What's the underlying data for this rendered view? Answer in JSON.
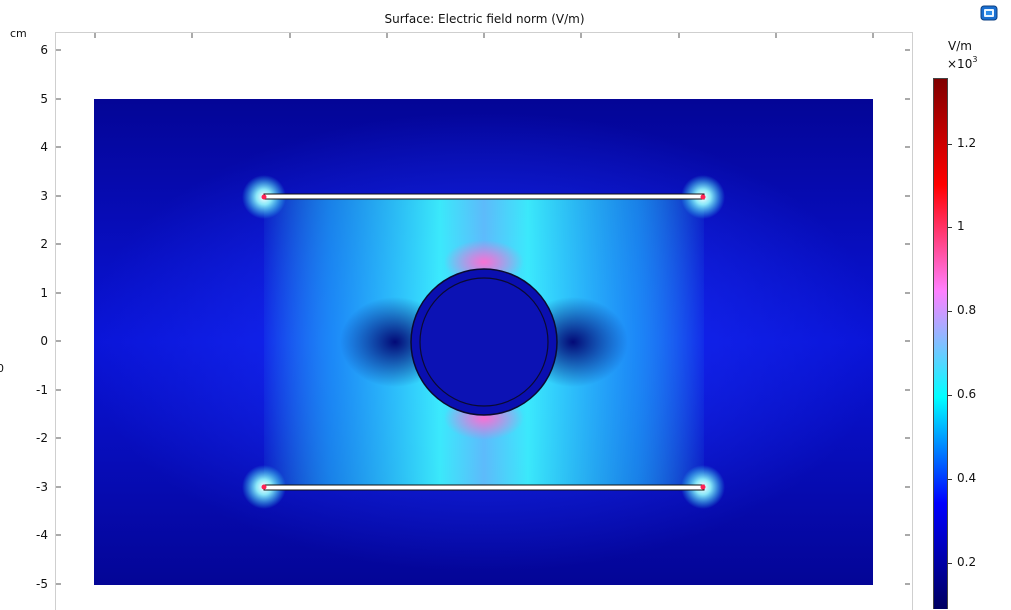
{
  "plot": {
    "title": "Surface: Electric field norm (V/m)",
    "y_unit": "cm",
    "edge_mark": "0",
    "y_ticks": [
      "6",
      "5",
      "4",
      "3",
      "2",
      "1",
      "0",
      "-1",
      "-2",
      "-3",
      "-4",
      "-5"
    ]
  },
  "colorbar": {
    "unit": "V/m",
    "scale_prefix": "×10",
    "scale_exp": "3",
    "ticks": [
      "1.2",
      "1",
      "0.8",
      "0.6",
      "0.4",
      "0.2"
    ],
    "range": [
      0.1,
      1.35
    ],
    "colormap": [
      "#000060",
      "#0000ff",
      "#00ffff",
      "#ff80ff",
      "#ff0000",
      "#800000"
    ]
  },
  "toolbar": {
    "fit_icon": "zoom-extents-icon"
  },
  "colors": {
    "field_low": "#040596",
    "field_mid": "#1a33ff",
    "field_high": "#33ffff",
    "hot": "#ff6ed2",
    "tip": "#ff2255"
  }
}
